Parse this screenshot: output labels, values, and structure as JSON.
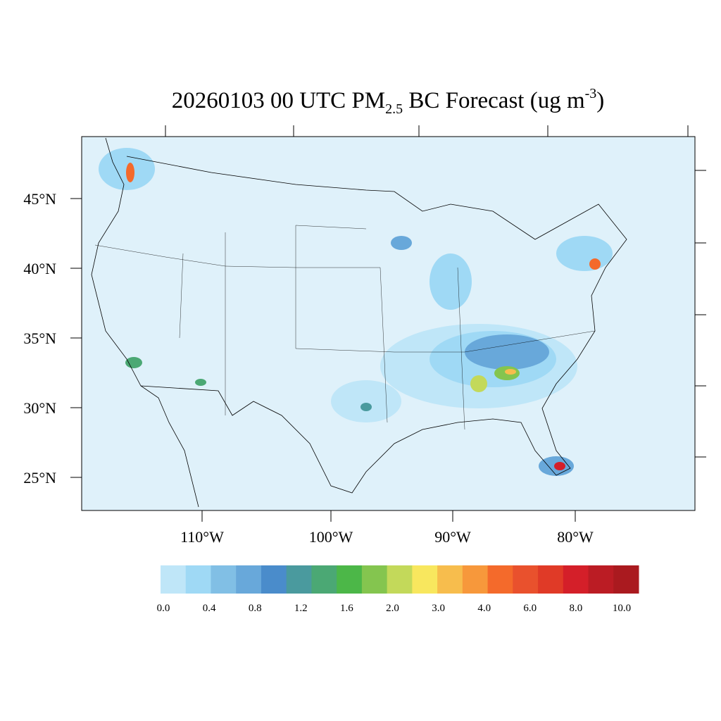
{
  "title": {
    "prefix": "20260103 00 UTC PM",
    "subscript": "2.5",
    "middle": " BC Forecast (ug m",
    "superscript": "-3",
    "suffix": ")"
  },
  "map": {
    "projection": "Lambert conformal (CONUS)",
    "background_color": "#dff1fa",
    "lat_labels": [
      "45°N",
      "40°N",
      "35°N",
      "30°N",
      "25°N"
    ],
    "lon_labels": [
      "110°W",
      "100°W",
      "90°W",
      "80°W"
    ]
  },
  "colorbar": {
    "colors": [
      "#dff2fb",
      "#bfe6f8",
      "#9fd9f5",
      "#81bfe5",
      "#68a8da",
      "#4a8ccb",
      "#4a9a9e",
      "#4ba874",
      "#4cb748",
      "#84c54f",
      "#c3d95a",
      "#f8e75e",
      "#f7bd4d",
      "#f7983b",
      "#f46a2b",
      "#e9512d",
      "#e03a27",
      "#d41f29",
      "#bb1c24",
      "#aa1a1f",
      "#93171b"
    ],
    "labels": [
      "0.0",
      "0.4",
      "0.8",
      "1.2",
      "1.6",
      "2.0",
      "3.0",
      "4.0",
      "6.0",
      "8.0",
      "10.0"
    ]
  }
}
